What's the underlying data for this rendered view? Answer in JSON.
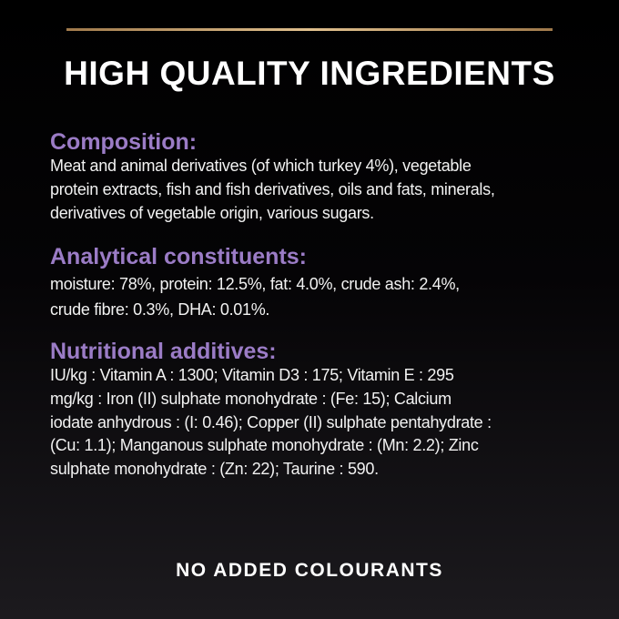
{
  "title": "HIGH QUALITY INGREDIENTS",
  "accent_colors": {
    "rule": "#d4b07e",
    "heading": "#9b7cc6"
  },
  "sections": [
    {
      "heading": "Composition:",
      "lines": [
        "Meat and animal derivatives (of which turkey 4%), vegetable",
        "protein extracts, fish and fish derivatives, oils and fats, minerals,",
        "derivatives of vegetable origin, various sugars."
      ]
    },
    {
      "heading": "Analytical constituents:",
      "lines": [
        "moisture: 78%, protein: 12.5%, fat: 4.0%, crude ash: 2.4%,",
        "crude fibre: 0.3%, DHA: 0.01%."
      ]
    },
    {
      "heading": "Nutritional additives:",
      "lines": [
        "IU/kg : Vitamin A : 1300; Vitamin D3 : 175; Vitamin E : 295",
        "mg/kg : Iron (II) sulphate monohydrate : (Fe: 15); Calcium",
        "iodate anhydrous : (I: 0.46); Copper (II) sulphate pentahydrate :",
        "(Cu: 1.1); Manganous sulphate monohydrate : (Mn: 2.2); Zinc",
        "sulphate monohydrate : (Zn: 22); Taurine : 590."
      ]
    }
  ],
  "footer": "NO ADDED COLOURANTS"
}
